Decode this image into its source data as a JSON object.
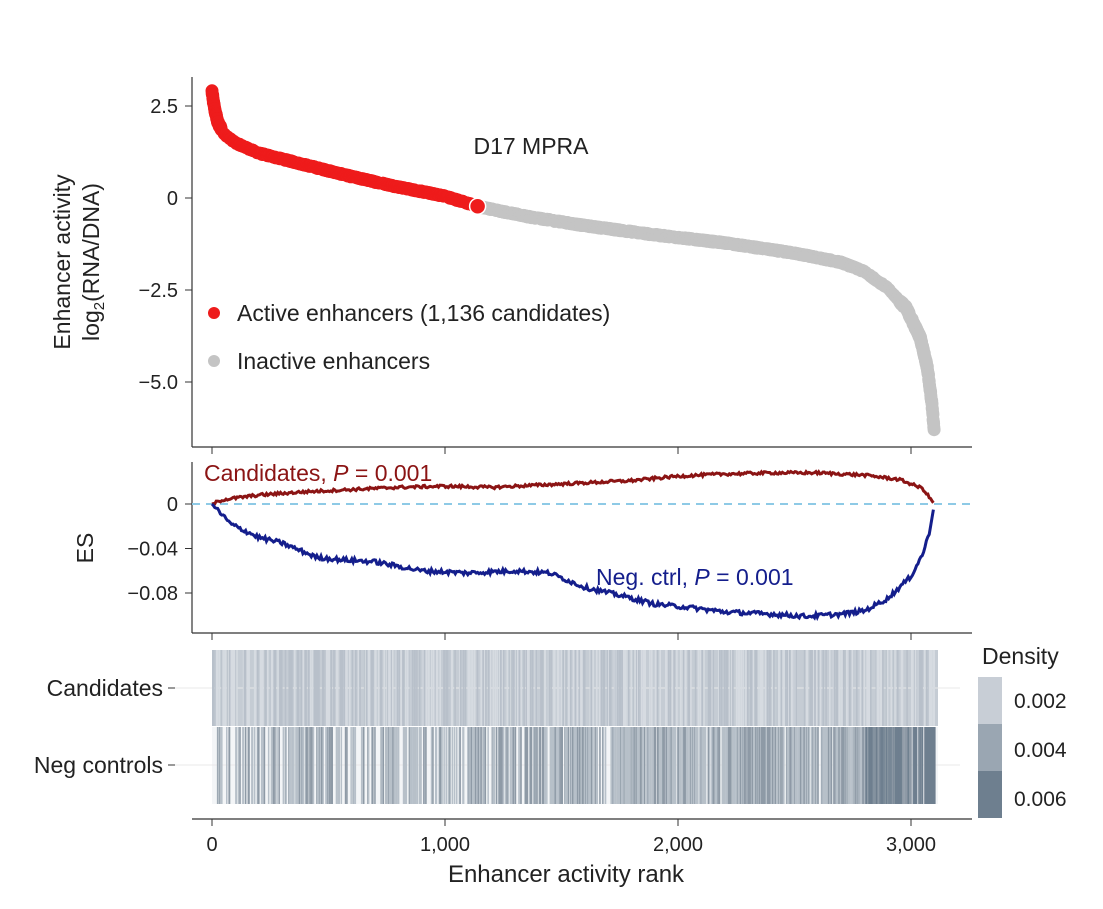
{
  "chart_data": [
    {
      "type": "scatter",
      "title": "D17 MPRA",
      "ylabel_line1": "Enhancer activity",
      "ylabel_line2_prefix": "log",
      "ylabel_line2_sub": "2",
      "ylabel_line2_suffix": "(RNA/DNA)",
      "ylim": [
        -6.8,
        3.3
      ],
      "xlim": [
        -60,
        3260
      ],
      "yticks": [
        2.5,
        0,
        -2.5,
        -5.0
      ],
      "ytick_labels": [
        "2.5",
        "0",
        "−2.5",
        "−5.0"
      ],
      "legend": {
        "placement": "left",
        "entries": [
          {
            "label": "Active enhancers (1,136 candidates)",
            "color": "#ee1c1c"
          },
          {
            "label": "Inactive enhancers",
            "color": "#c4c4c4"
          }
        ]
      },
      "n_points": 3100,
      "active_count": 1136,
      "curve_keypoints": [
        [
          0,
          2.9
        ],
        [
          5,
          2.65
        ],
        [
          12,
          2.4
        ],
        [
          25,
          2.05
        ],
        [
          50,
          1.75
        ],
        [
          100,
          1.5
        ],
        [
          200,
          1.22
        ],
        [
          400,
          0.9
        ],
        [
          600,
          0.58
        ],
        [
          800,
          0.3
        ],
        [
          1000,
          0.05
        ],
        [
          1136,
          -0.22
        ],
        [
          1350,
          -0.5
        ],
        [
          1600,
          -0.75
        ],
        [
          1900,
          -1.0
        ],
        [
          2200,
          -1.22
        ],
        [
          2500,
          -1.5
        ],
        [
          2700,
          -1.75
        ],
        [
          2800,
          -2.0
        ],
        [
          2900,
          -2.45
        ],
        [
          2980,
          -3.0
        ],
        [
          3040,
          -3.8
        ],
        [
          3070,
          -4.6
        ],
        [
          3090,
          -5.6
        ],
        [
          3100,
          -6.4
        ]
      ]
    },
    {
      "type": "line",
      "ylabel": "ES",
      "ylim": [
        -0.115,
        0.03
      ],
      "yticks": [
        0,
        -0.04,
        -0.08
      ],
      "ytick_labels": [
        "0",
        "−0.04",
        "−0.08"
      ],
      "series": [
        {
          "name": "Candidates",
          "p_label": "P",
          "p_value": " = 0.001",
          "color": "#8b1414",
          "keypoints": [
            [
              0,
              0
            ],
            [
              50,
              0.004
            ],
            [
              200,
              0.008
            ],
            [
              400,
              0.011
            ],
            [
              600,
              0.013
            ],
            [
              800,
              0.015
            ],
            [
              1000,
              0.016
            ],
            [
              1200,
              0.015
            ],
            [
              1400,
              0.017
            ],
            [
              1600,
              0.019
            ],
            [
              1800,
              0.021
            ],
            [
              2000,
              0.025
            ],
            [
              2200,
              0.027
            ],
            [
              2400,
              0.028
            ],
            [
              2600,
              0.028
            ],
            [
              2800,
              0.026
            ],
            [
              2950,
              0.022
            ],
            [
              3050,
              0.014
            ],
            [
              3100,
              0
            ]
          ]
        },
        {
          "name": "Neg. ctrl",
          "p_label": "P",
          "p_value": " = 0.001",
          "color": "#141e8c",
          "keypoints": [
            [
              0,
              0
            ],
            [
              80,
              -0.018
            ],
            [
              200,
              -0.03
            ],
            [
              300,
              -0.035
            ],
            [
              450,
              -0.048
            ],
            [
              550,
              -0.05
            ],
            [
              700,
              -0.052
            ],
            [
              900,
              -0.06
            ],
            [
              1100,
              -0.062
            ],
            [
              1300,
              -0.06
            ],
            [
              1450,
              -0.062
            ],
            [
              1600,
              -0.075
            ],
            [
              1750,
              -0.082
            ],
            [
              1900,
              -0.09
            ],
            [
              2050,
              -0.093
            ],
            [
              2200,
              -0.097
            ],
            [
              2400,
              -0.099
            ],
            [
              2550,
              -0.101
            ],
            [
              2700,
              -0.099
            ],
            [
              2800,
              -0.096
            ],
            [
              2900,
              -0.085
            ],
            [
              3000,
              -0.065
            ],
            [
              3050,
              -0.045
            ],
            [
              3080,
              -0.025
            ],
            [
              3100,
              0
            ]
          ]
        }
      ],
      "reference_line": {
        "value": 0,
        "color": "#8ecae6"
      }
    },
    {
      "type": "heatmap",
      "rows": [
        "Candidates",
        "Neg controls"
      ],
      "xlabel": "Enhancer activity rank",
      "xticks": [
        0,
        1000,
        2000,
        3000
      ],
      "xtick_labels": [
        "0",
        "1,000",
        "2,000",
        "3,000"
      ],
      "colorbar": {
        "title": "Density",
        "labels": [
          "0.002",
          "0.004",
          "0.006"
        ],
        "colors": [
          "#c8ced6",
          "#9aa6b2",
          "#6e7f8f"
        ]
      }
    }
  ]
}
